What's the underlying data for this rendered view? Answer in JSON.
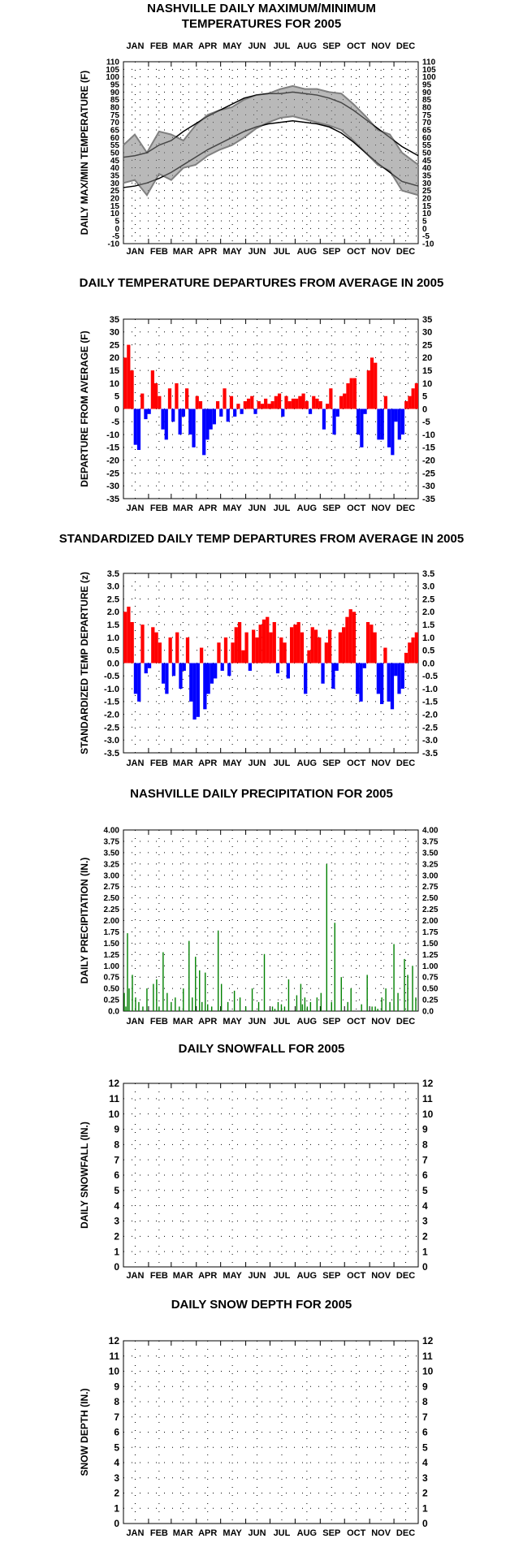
{
  "months": [
    "JAN",
    "FEB",
    "MAR",
    "APR",
    "MAY",
    "JUN",
    "JUL",
    "AUG",
    "SEP",
    "OCT",
    "NOV",
    "DEC"
  ],
  "colors": {
    "series": "#808080",
    "normals": "#000000",
    "above": "#ff0000",
    "below": "#0000ff",
    "precip": "#008000",
    "grid": "#000000"
  },
  "chart_data": [
    {
      "type": "line",
      "title_lines": [
        "NASHVILLE DAILY MAXIMUM/MINIMUM",
        "TEMPERATURES FOR 2005"
      ],
      "ylabel": "DAILY MAX/MIN TEMPERATURE (F)",
      "ylim": [
        -10,
        110
      ],
      "yticks": [
        "-10",
        "-5",
        "0",
        "5",
        "10",
        "15",
        "20",
        "25",
        "30",
        "35",
        "40",
        "45",
        "50",
        "55",
        "60",
        "65",
        "70",
        "75",
        "80",
        "85",
        "90",
        "95",
        "100",
        "105",
        "110"
      ],
      "x": [
        1,
        15,
        30,
        45,
        60,
        75,
        90,
        105,
        120,
        135,
        150,
        165,
        180,
        195,
        210,
        225,
        240,
        255,
        270,
        285,
        300,
        315,
        330,
        345,
        365
      ],
      "series": [
        {
          "values": [
            55,
            62,
            50,
            64,
            62,
            58,
            68,
            75,
            78,
            80,
            85,
            88,
            89,
            92,
            94,
            92,
            92,
            90,
            89,
            82,
            74,
            65,
            62,
            50,
            42
          ]
        },
        {
          "values": [
            30,
            32,
            22,
            36,
            32,
            40,
            42,
            48,
            52,
            55,
            60,
            66,
            70,
            73,
            74,
            72,
            70,
            68,
            65,
            58,
            50,
            42,
            38,
            25,
            22
          ]
        },
        {
          "values": [
            47,
            48,
            50,
            55,
            58,
            64,
            69,
            74,
            78,
            82,
            86,
            88,
            89,
            89,
            90,
            89,
            88,
            86,
            83,
            78,
            72,
            66,
            60,
            54,
            48
          ]
        },
        {
          "values": [
            27,
            28,
            30,
            33,
            37,
            42,
            47,
            52,
            56,
            60,
            64,
            67,
            69,
            70,
            71,
            70,
            69,
            67,
            63,
            57,
            50,
            43,
            37,
            31,
            28
          ]
        }
      ],
      "grid": true
    },
    {
      "type": "bar",
      "title": "DAILY TEMPERATURE DEPARTURES FROM AVERAGE IN 2005",
      "ylabel": "DEPARTURE FROM AVERAGE (F)",
      "ylim": [
        -35,
        35
      ],
      "yticks": [
        "-35",
        "-30",
        "-25",
        "-20",
        "-15",
        "-10",
        "-5",
        "0",
        "5",
        "10",
        "15",
        "20",
        "25",
        "30",
        "35"
      ],
      "values": [
        20,
        25,
        15,
        -14,
        -16,
        6,
        -4,
        -2,
        15,
        10,
        5,
        -8,
        -12,
        8,
        -5,
        10,
        -10,
        -3,
        8,
        -10,
        -15,
        5,
        3,
        -18,
        -12,
        -8,
        -6,
        3,
        -3,
        8,
        -5,
        5,
        -3,
        2,
        -2,
        3,
        4,
        5,
        -2,
        3,
        2,
        4,
        2,
        3,
        5,
        6,
        -3,
        5,
        3,
        4,
        4,
        5,
        6,
        3,
        -2,
        5,
        4,
        3,
        -8,
        2,
        8,
        -10,
        -3,
        5,
        6,
        10,
        12,
        12,
        -10,
        -15,
        -2,
        15,
        20,
        18,
        -12,
        -12,
        5,
        -15,
        -18,
        -5,
        -12,
        -10,
        3,
        5,
        8,
        10
      ],
      "grid": true
    },
    {
      "type": "bar",
      "title": "STANDARDIZED DAILY TEMP DEPARTURES FROM AVERAGE IN 2005",
      "ylabel": "STANDARDIZED TEMP DEPARTURE (z)",
      "ylim": [
        -3.5,
        3.5
      ],
      "yticks": [
        "-3.5",
        "-3.0",
        "-2.5",
        "-2.0",
        "-1.5",
        "-1.0",
        "-0.5",
        "0.0",
        "0.5",
        "1.0",
        "1.5",
        "2.0",
        "2.5",
        "3.0",
        "3.5"
      ],
      "values": [
        2.0,
        2.2,
        1.6,
        -1.2,
        -1.5,
        1.5,
        -0.4,
        -0.2,
        1.4,
        1.2,
        0.8,
        -0.8,
        -1.2,
        1.0,
        -0.5,
        1.2,
        -1.0,
        -0.3,
        1.0,
        -1.5,
        -2.2,
        -2.1,
        0.6,
        -1.8,
        -1.2,
        -0.8,
        -0.6,
        0.8,
        -0.3,
        1.0,
        -0.5,
        0.8,
        1.4,
        1.6,
        0.5,
        1.2,
        -0.3,
        1.3,
        1.0,
        1.5,
        1.7,
        1.8,
        1.2,
        1.6,
        -0.4,
        1.0,
        0.8,
        -0.6,
        1.4,
        1.5,
        1.6,
        1.2,
        -1.2,
        0.5,
        1.4,
        1.3,
        1.0,
        -0.8,
        0.8,
        1.3,
        -1.0,
        -0.3,
        1.2,
        1.4,
        1.8,
        2.1,
        2.0,
        -1.2,
        -1.5,
        -0.2,
        1.6,
        1.5,
        1.2,
        -1.2,
        -1.6,
        0.6,
        -1.5,
        -1.8,
        -0.5,
        -1.2,
        -1.0,
        0.4,
        0.8,
        1.0,
        1.2
      ],
      "grid": true
    },
    {
      "type": "bar",
      "title": "NASHVILLE DAILY PRECIPITATION FOR 2005",
      "ylabel": "DAILY PRECIPITATION (IN.)",
      "ylim": [
        0,
        4
      ],
      "yticks": [
        "0.0",
        "0.25",
        "0.50",
        "0.75",
        "1.00",
        "1.25",
        "1.50",
        "1.75",
        "2.00",
        "2.25",
        "2.50",
        "2.75",
        "3.00",
        "3.25",
        "3.50",
        "3.75",
        "4.00"
      ],
      "x": [
        2,
        4,
        6,
        8,
        12,
        16,
        20,
        25,
        30,
        38,
        42,
        45,
        50,
        55,
        60,
        65,
        70,
        75,
        82,
        86,
        90,
        95,
        98,
        102,
        105,
        110,
        118,
        122,
        130,
        138,
        145,
        152,
        160,
        168,
        175,
        185,
        188,
        192,
        196,
        200,
        205,
        215,
        220,
        222,
        225,
        228,
        232,
        240,
        245,
        252,
        258,
        262,
        270,
        278,
        282,
        295,
        302,
        308,
        312,
        315,
        320,
        325,
        330,
        335,
        340,
        348,
        352,
        358,
        362
      ],
      "values": [
        0.4,
        0.1,
        1.72,
        0.5,
        0.8,
        0.3,
        0.2,
        0.1,
        0.5,
        0.6,
        0.7,
        0.1,
        1.3,
        0.4,
        0.2,
        0.3,
        0.1,
        0.5,
        1.55,
        0.3,
        1.2,
        0.9,
        0.2,
        0.85,
        0.15,
        0.1,
        1.78,
        0.6,
        0.2,
        0.45,
        0.3,
        0.1,
        0.5,
        0.2,
        1.26,
        0.1,
        0.05,
        0.2,
        0.15,
        0.1,
        0.7,
        0.35,
        0.6,
        0.15,
        0.3,
        0.1,
        0.2,
        0.3,
        0.4,
        3.25,
        0.2,
        1.95,
        0.75,
        0.2,
        0.5,
        0.15,
        0.8,
        0.1,
        0.1,
        0.05,
        0.3,
        0.5,
        0.2,
        1.48,
        0.4,
        1.15,
        0.8,
        1.0,
        0.3
      ],
      "grid": true
    },
    {
      "type": "bar",
      "title": "DAILY SNOWFALL FOR 2005",
      "ylabel": "DAILY SNOWFALL (IN.)",
      "ylim": [
        0,
        12
      ],
      "yticks": [
        "0",
        "1",
        "2",
        "3",
        "4",
        "5",
        "6",
        "7",
        "8",
        "9",
        "10",
        "11",
        "12"
      ],
      "values": [],
      "grid": true
    },
    {
      "type": "bar",
      "title": "DAILY SNOW DEPTH FOR 2005",
      "ylabel": "SNOW DEPTH (IN.)",
      "ylim": [
        0,
        12
      ],
      "yticks": [
        "0",
        "1",
        "2",
        "3",
        "4",
        "5",
        "6",
        "7",
        "8",
        "9",
        "10",
        "11",
        "12"
      ],
      "values": [],
      "grid": true
    }
  ]
}
